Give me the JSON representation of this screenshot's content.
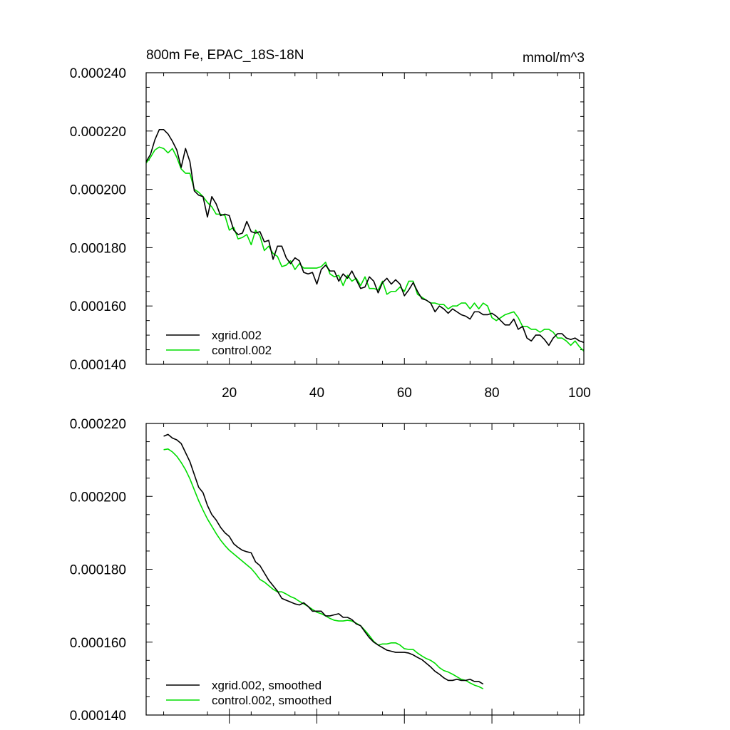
{
  "colors": {
    "xgrid": "#000000",
    "control": "#00dd00",
    "frame": "#000000"
  },
  "chart_data": [
    {
      "type": "line",
      "title": "800m Fe, EPAC_18S-18N",
      "units": "mmol/m^3",
      "xlabel": "",
      "ylabel": "",
      "xlim": [
        1,
        101
      ],
      "ylim": [
        0.00014,
        0.00024
      ],
      "x_ticks": [
        20,
        40,
        60,
        80,
        100
      ],
      "x_tick_labels": [
        "20",
        "40",
        "60",
        "80",
        "100"
      ],
      "y_ticks": [
        0.00014,
        0.00016,
        0.00018,
        0.0002,
        0.00022,
        0.00024
      ],
      "y_tick_labels": [
        "0.000140",
        "0.000160",
        "0.000180",
        "0.000200",
        "0.000220",
        "0.000240"
      ],
      "legend": "bottom-left",
      "x_start": 1,
      "series": [
        {
          "name": "xgrid.002",
          "color": "#000000",
          "values": [
            0.0002095,
            0.000212,
            0.000217,
            0.0002205,
            0.0002205,
            0.000219,
            0.0002165,
            0.0002135,
            0.0002075,
            0.000214,
            0.0002095,
            0.0001995,
            0.000198,
            0.0001975,
            0.0001905,
            0.0001975,
            0.000195,
            0.000191,
            0.0001915,
            0.000191,
            0.000186,
            0.0001845,
            0.000185,
            0.000189,
            0.0001855,
            0.000185,
            0.0001855,
            0.000182,
            0.0001825,
            0.000176,
            0.0001805,
            0.0001805,
            0.0001765,
            0.0001745,
            0.0001765,
            0.0001755,
            0.0001715,
            0.000171,
            0.0001715,
            0.0001675,
            0.0001725,
            0.000174,
            0.000172,
            0.000172,
            0.0001685,
            0.000171,
            0.0001695,
            0.000172,
            0.000169,
            0.000166,
            0.0001665,
            0.00017,
            0.0001685,
            0.0001645,
            0.000168,
            0.0001695,
            0.0001675,
            0.000169,
            0.0001675,
            0.0001635,
            0.0001655,
            0.000168,
            0.000165,
            0.0001625,
            0.000162,
            0.000161,
            0.000158,
            0.00016,
            0.000159,
            0.0001575,
            0.000159,
            0.000158,
            0.000157,
            0.0001565,
            0.0001555,
            0.000158,
            0.000158,
            0.000157,
            0.000157,
            0.0001575,
            0.0001565,
            0.000155,
            0.0001535,
            0.0001535,
            0.0001555,
            0.000152,
            0.000153,
            0.000149,
            0.000148,
            0.00015,
            0.00015,
            0.0001485,
            0.0001465,
            0.000149,
            0.0001505,
            0.0001505,
            0.000149,
            0.0001485,
            0.000149,
            0.000148,
            0.0001475
          ]
        },
        {
          "name": "control.002",
          "color": "#00dd00",
          "values": [
            0.000209,
            0.000211,
            0.0002135,
            0.0002145,
            0.000214,
            0.0002125,
            0.000214,
            0.000211,
            0.000207,
            0.0002055,
            0.0002055,
            0.0002,
            0.000199,
            0.0001975,
            0.0001955,
            0.000194,
            0.0001915,
            0.0001915,
            0.000191,
            0.000186,
            0.000187,
            0.000183,
            0.0001835,
            0.0001845,
            0.000181,
            0.000186,
            0.000184,
            0.000179,
            0.0001805,
            0.000178,
            0.000177,
            0.0001735,
            0.000174,
            0.0001755,
            0.0001725,
            0.0001745,
            0.000173,
            0.000173,
            0.000173,
            0.000173,
            0.0001735,
            0.000175,
            0.000171,
            0.00017,
            0.0001705,
            0.000167,
            0.0001705,
            0.0001685,
            0.0001695,
            0.000167,
            0.00017,
            0.000166,
            0.000166,
            0.0001655,
            0.0001685,
            0.000164,
            0.000165,
            0.000165,
            0.0001665,
            0.000165,
            0.0001685,
            0.0001685,
            0.000164,
            0.000163,
            0.000162,
            0.000161,
            0.000161,
            0.0001605,
            0.0001605,
            0.000159,
            0.00016,
            0.00016,
            0.000161,
            0.000161,
            0.000159,
            0.000161,
            0.000159,
            0.000161,
            0.00016,
            0.000156,
            0.000155,
            0.000156,
            0.000157,
            0.0001575,
            0.000158,
            0.000156,
            0.000153,
            0.000153,
            0.000152,
            0.000152,
            0.000151,
            0.000152,
            0.000152,
            0.000151,
            0.000149,
            0.000149,
            0.000148,
            0.0001465,
            0.000148,
            0.000146,
            0.0001445
          ]
        }
      ]
    },
    {
      "type": "line",
      "title": "",
      "xlabel": "",
      "ylabel": "",
      "xlim": [
        1,
        101
      ],
      "ylim": [
        0.00014,
        0.00022
      ],
      "x_ticks": [
        20,
        40,
        60,
        80,
        100
      ],
      "x_tick_labels": [],
      "y_ticks": [
        0.00014,
        0.00016,
        0.00018,
        0.0002,
        0.00022
      ],
      "y_tick_labels": [
        "0.000140",
        "0.000160",
        "0.000180",
        "0.000200",
        "0.000220"
      ],
      "legend": "bottom-left",
      "x_start": 5,
      "series": [
        {
          "name": "xgrid.002, smoothed",
          "color": "#000000",
          "values": [
            0.0002165,
            0.000217,
            0.000216,
            0.0002155,
            0.0002145,
            0.000212,
            0.0002095,
            0.000206,
            0.0002025,
            0.000201,
            0.0001975,
            0.000195,
            0.0001935,
            0.0001915,
            0.00019,
            0.000189,
            0.000187,
            0.000186,
            0.0001852,
            0.0001848,
            0.0001845,
            0.000182,
            0.000181,
            0.000179,
            0.000177,
            0.0001755,
            0.000174,
            0.000172,
            0.0001715,
            0.000171,
            0.0001705,
            0.0001702,
            0.0001708,
            0.0001698,
            0.0001685,
            0.0001685,
            0.0001685,
            0.0001672,
            0.0001672,
            0.0001675,
            0.0001678,
            0.0001668,
            0.0001668,
            0.0001662,
            0.000165,
            0.0001645,
            0.0001628,
            0.0001612,
            0.00016,
            0.0001592,
            0.0001585,
            0.0001578,
            0.0001575,
            0.0001572,
            0.0001572,
            0.0001572,
            0.000157,
            0.0001565,
            0.0001558,
            0.0001552,
            0.0001542,
            0.0001532,
            0.000152,
            0.0001512,
            0.0001502,
            0.0001495,
            0.0001495,
            0.0001498,
            0.0001495,
            0.0001495,
            0.0001498,
            0.0001492,
            0.0001492,
            0.0001485
          ]
        },
        {
          "name": "control.002, smoothed",
          "color": "#00dd00",
          "values": [
            0.0002128,
            0.000213,
            0.0002122,
            0.000211,
            0.0002093,
            0.0002073,
            0.0002048,
            0.0002018,
            0.0001988,
            0.0001962,
            0.0001938,
            0.0001918,
            0.0001898,
            0.000188,
            0.0001865,
            0.0001852,
            0.0001842,
            0.0001832,
            0.0001822,
            0.0001812,
            0.0001802,
            0.0001788,
            0.0001772,
            0.0001765,
            0.0001755,
            0.0001745,
            0.0001738,
            0.0001738,
            0.0001732,
            0.0001725,
            0.000172,
            0.0001712,
            0.0001705,
            0.0001698,
            0.000169,
            0.0001682,
            0.0001678,
            0.0001672,
            0.0001665,
            0.000166,
            0.0001658,
            0.0001658,
            0.000166,
            0.0001658,
            0.0001652,
            0.0001645,
            0.0001632,
            0.0001618,
            0.0001602,
            0.0001592,
            0.0001595,
            0.0001595,
            0.0001598,
            0.0001598,
            0.0001592,
            0.0001582,
            0.000158,
            0.000158,
            0.000157,
            0.0001562,
            0.0001555,
            0.000155,
            0.0001542,
            0.000153,
            0.0001522,
            0.0001518,
            0.0001512,
            0.0001505,
            0.0001498,
            0.0001495,
            0.0001488,
            0.0001482,
            0.0001478,
            0.0001472
          ]
        }
      ]
    }
  ]
}
